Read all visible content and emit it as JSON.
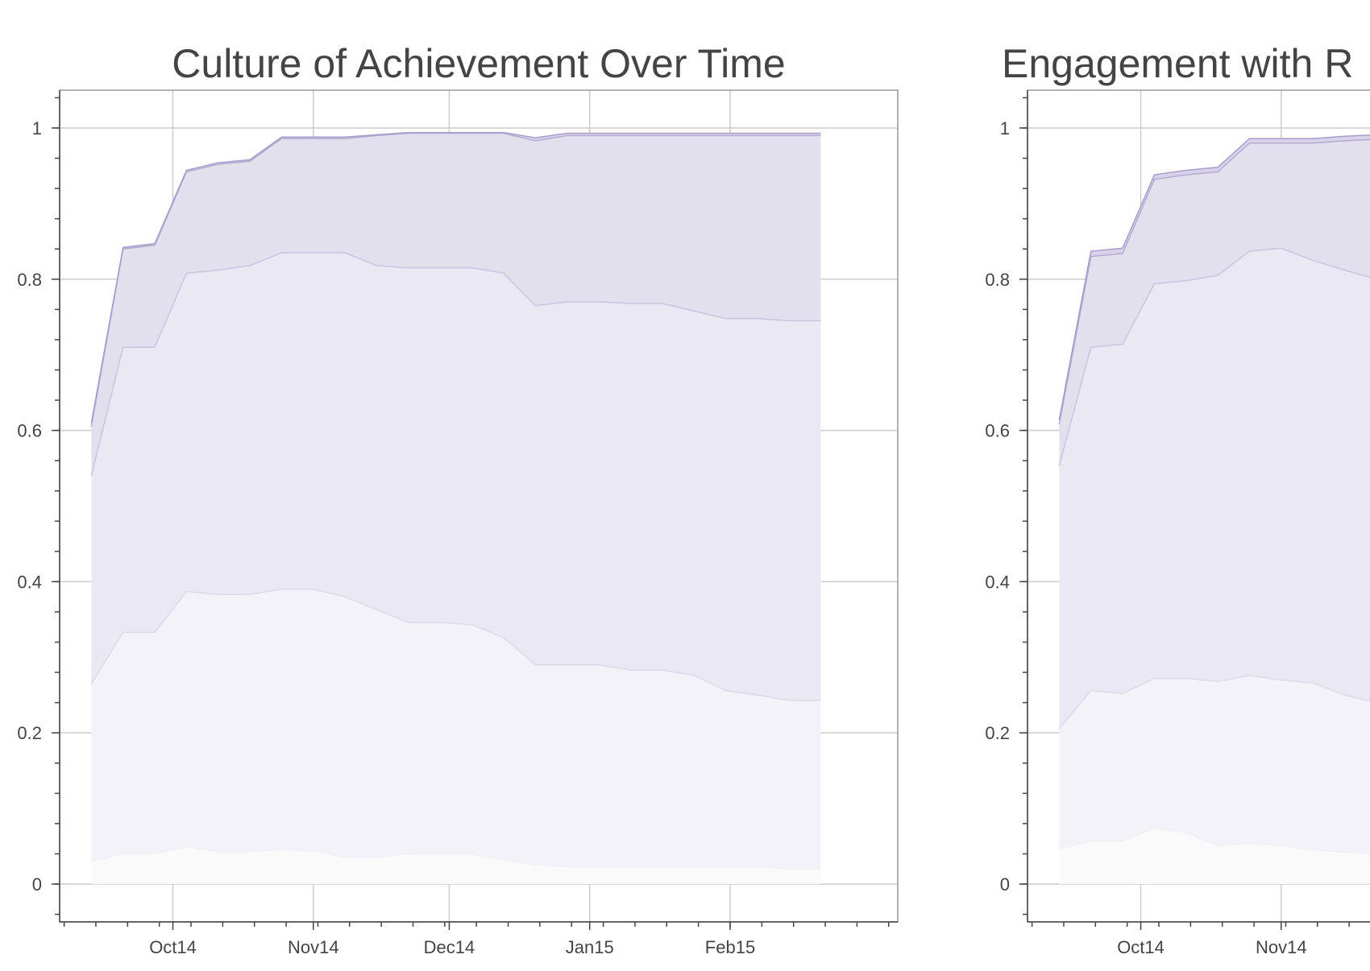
{
  "colors": {
    "band_0": "#fafafa",
    "band_1": "#f3f2f8",
    "band_2": "#eae8f3",
    "band_3": "#e3e0ee",
    "band_4": "#d9d3e9",
    "lines": [
      "#f0eff5",
      "#dcdae8",
      "#c9c4df",
      "#b4abd2",
      "#a89ccc"
    ]
  },
  "chart_data": [
    {
      "type": "area",
      "stacked": true,
      "title": "Culture of Achievement Over Time",
      "xlabel": "",
      "ylabel": "",
      "ylim": [
        -0.05,
        1.05
      ],
      "xlim": [
        "2014-09-06",
        "2015-03-10"
      ],
      "yticks": [
        {
          "value": 0,
          "label": "0"
        },
        {
          "value": 0.2,
          "label": "0.2"
        },
        {
          "value": 0.4,
          "label": "0.4"
        },
        {
          "value": 0.6,
          "label": "0.6"
        },
        {
          "value": 0.8,
          "label": "0.8"
        },
        {
          "value": 1,
          "label": "1"
        }
      ],
      "xticks": [
        {
          "value": "2014-10-01",
          "label": "Oct14"
        },
        {
          "value": "2014-11-01",
          "label": "Nov14"
        },
        {
          "value": "2014-12-01",
          "label": "Dec14"
        },
        {
          "value": "2015-01-01",
          "label": "Jan15"
        },
        {
          "value": "2015-02-01",
          "label": "Feb15"
        }
      ],
      "grid": true,
      "x": [
        "2014-09-13",
        "2014-09-20",
        "2014-09-27",
        "2014-10-04",
        "2014-10-11",
        "2014-10-18",
        "2014-10-25",
        "2014-11-01",
        "2014-11-08",
        "2014-11-15",
        "2014-11-22",
        "2014-11-29",
        "2014-12-06",
        "2014-12-13",
        "2014-12-20",
        "2014-12-27",
        "2015-01-03",
        "2015-01-10",
        "2015-01-17",
        "2015-01-24",
        "2015-01-31",
        "2015-02-07",
        "2015-02-14",
        "2015-02-21"
      ],
      "series": [
        {
          "values": [
            0.03,
            0.04,
            0.04,
            0.05,
            0.043,
            0.043,
            0.046,
            0.044,
            0.036,
            0.036,
            0.04,
            0.04,
            0.04,
            0.032,
            0.026,
            0.023,
            0.023,
            0.023,
            0.023,
            0.023,
            0.023,
            0.023,
            0.02,
            0.02
          ]
        },
        {
          "values": [
            0.265,
            0.333,
            0.333,
            0.387,
            0.383,
            0.383,
            0.39,
            0.39,
            0.38,
            0.363,
            0.346,
            0.346,
            0.343,
            0.326,
            0.29,
            0.29,
            0.29,
            0.283,
            0.283,
            0.276,
            0.256,
            0.25,
            0.243,
            0.243
          ]
        },
        {
          "values": [
            0.54,
            0.71,
            0.71,
            0.808,
            0.812,
            0.818,
            0.835,
            0.835,
            0.835,
            0.818,
            0.815,
            0.815,
            0.815,
            0.808,
            0.765,
            0.77,
            0.77,
            0.768,
            0.768,
            0.758,
            0.748,
            0.748,
            0.745,
            0.745
          ]
        },
        {
          "values": [
            0.605,
            0.84,
            0.845,
            0.942,
            0.952,
            0.956,
            0.986,
            0.986,
            0.986,
            0.99,
            0.993,
            0.993,
            0.993,
            0.993,
            0.983,
            0.99,
            0.99,
            0.99,
            0.99,
            0.99,
            0.99,
            0.99,
            0.99,
            0.99
          ]
        },
        {
          "values": [
            0.61,
            0.842,
            0.847,
            0.944,
            0.954,
            0.958,
            0.988,
            0.988,
            0.988,
            0.991,
            0.994,
            0.994,
            0.994,
            0.994,
            0.987,
            0.993,
            0.993,
            0.993,
            0.993,
            0.993,
            0.993,
            0.993,
            0.993,
            0.993
          ]
        }
      ]
    },
    {
      "type": "area",
      "stacked": true,
      "title": "Engagement with R",
      "xlabel": "",
      "ylabel": "",
      "ylim": [
        -0.05,
        1.05
      ],
      "xlim": [
        "2014-09-06",
        "2015-03-10"
      ],
      "yticks": [
        {
          "value": 0,
          "label": "0"
        },
        {
          "value": 0.2,
          "label": "0.2"
        },
        {
          "value": 0.4,
          "label": "0.4"
        },
        {
          "value": 0.6,
          "label": "0.6"
        },
        {
          "value": 0.8,
          "label": "0.8"
        },
        {
          "value": 1,
          "label": "1"
        }
      ],
      "xticks": [
        {
          "value": "2014-10-01",
          "label": "Oct14"
        },
        {
          "value": "2014-11-01",
          "label": "Nov14"
        }
      ],
      "grid": true,
      "x": [
        "2014-09-13",
        "2014-09-20",
        "2014-09-27",
        "2014-10-04",
        "2014-10-11",
        "2014-10-18",
        "2014-10-25",
        "2014-11-01",
        "2014-11-08",
        "2014-11-15",
        "2014-11-22"
      ],
      "series": [
        {
          "values": [
            0.047,
            0.057,
            0.057,
            0.074,
            0.068,
            0.051,
            0.054,
            0.051,
            0.045,
            0.042,
            0.04
          ]
        },
        {
          "values": [
            0.205,
            0.256,
            0.252,
            0.272,
            0.272,
            0.268,
            0.276,
            0.27,
            0.266,
            0.25,
            0.24
          ]
        },
        {
          "values": [
            0.553,
            0.71,
            0.714,
            0.794,
            0.798,
            0.805,
            0.837,
            0.841,
            0.825,
            0.812,
            0.8
          ]
        },
        {
          "values": [
            0.608,
            0.83,
            0.834,
            0.932,
            0.938,
            0.942,
            0.98,
            0.98,
            0.98,
            0.983,
            0.985
          ]
        },
        {
          "values": [
            0.614,
            0.837,
            0.841,
            0.938,
            0.944,
            0.948,
            0.986,
            0.986,
            0.986,
            0.989,
            0.991
          ]
        }
      ]
    }
  ]
}
